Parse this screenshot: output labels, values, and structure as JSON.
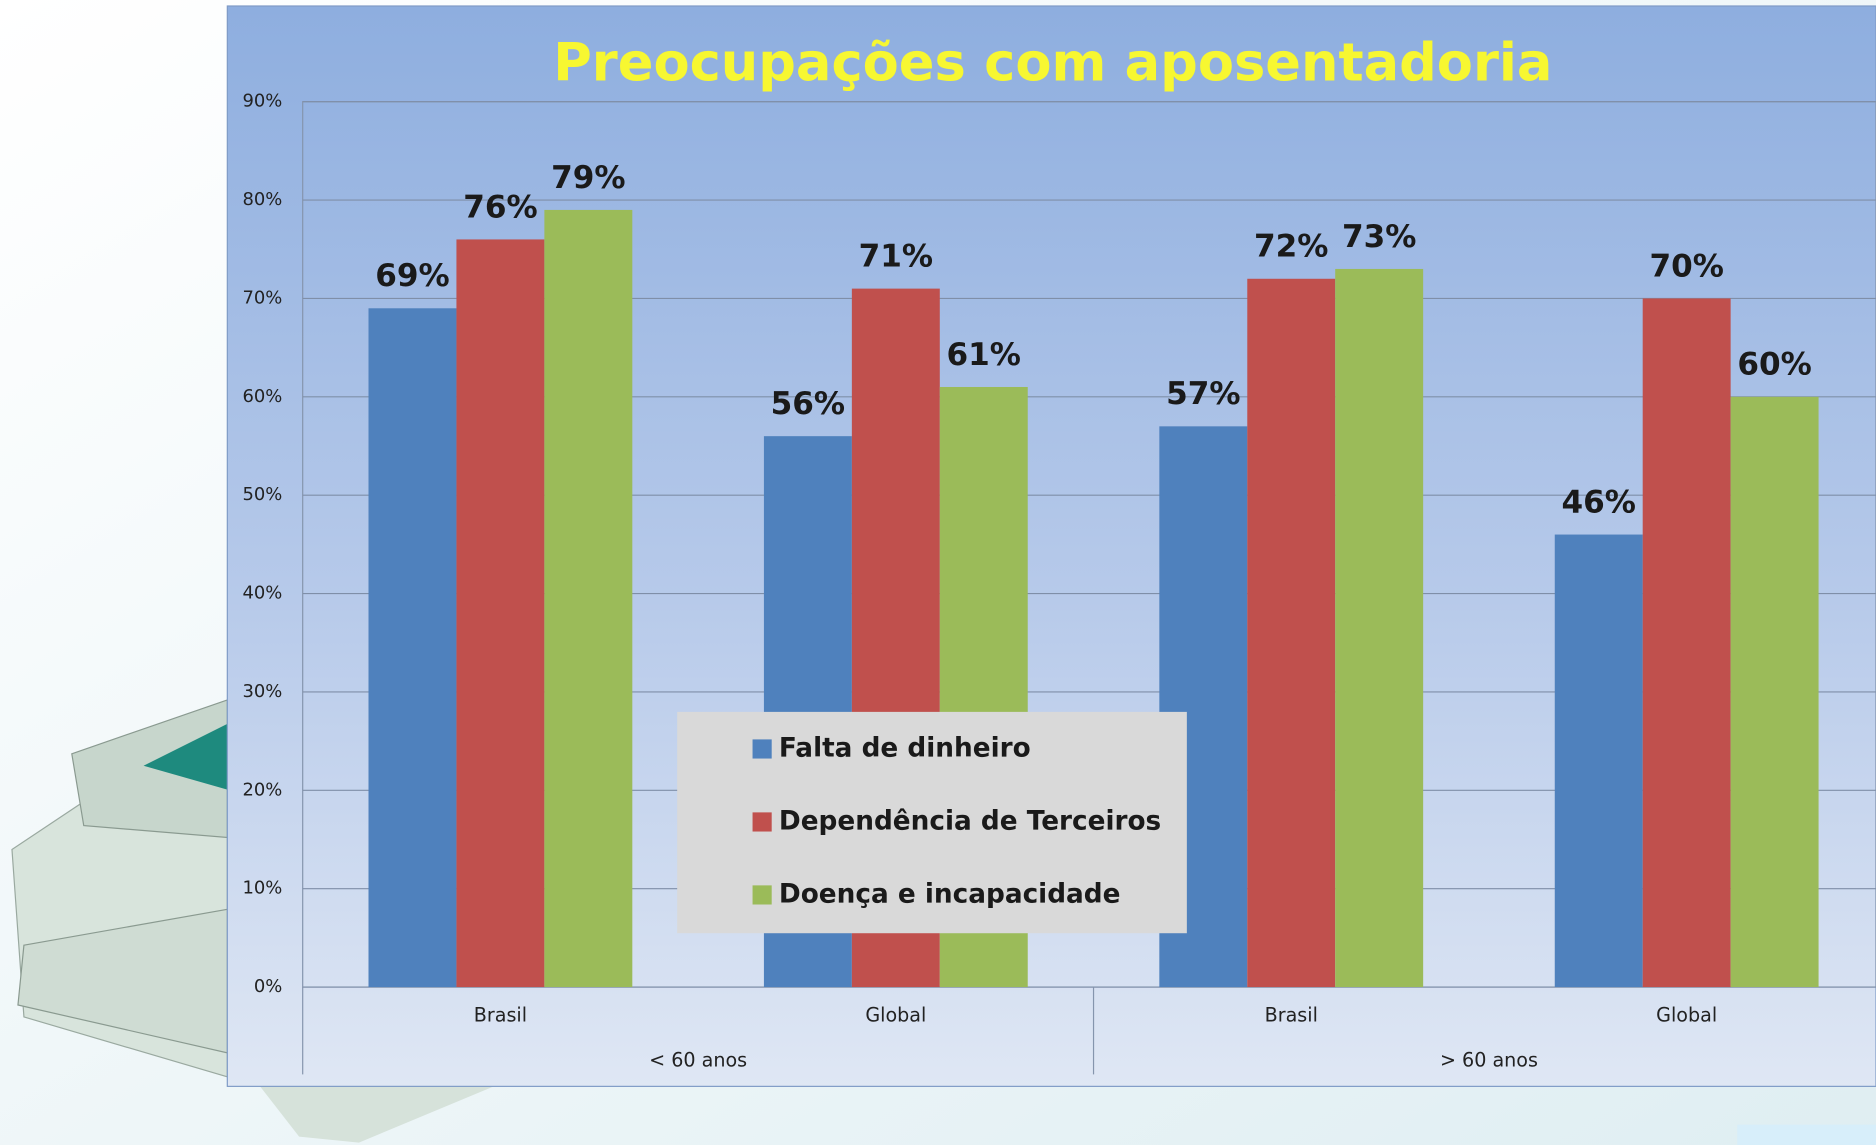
{
  "chart_data": {
    "type": "bar",
    "title": "Preocupações com aposentadoria",
    "categories": [
      "Brasil",
      "Global",
      "Brasil",
      "Global"
    ],
    "group_labels": [
      "< 60 anos",
      "> 60 anos"
    ],
    "series": [
      {
        "name": "Falta de dinheiro",
        "color": "#4f81bd",
        "values": [
          69,
          56,
          57,
          46
        ],
        "value_labels": [
          "69%",
          "56%",
          "57%",
          "46%"
        ]
      },
      {
        "name": "Dependência de Terceiros",
        "color": "#c0504d",
        "values": [
          76,
          71,
          72,
          70
        ],
        "value_labels": [
          "76%",
          "71%",
          "72%",
          "70%"
        ]
      },
      {
        "name": "Doença e incapacidade",
        "color": "#9bbb59",
        "values": [
          79,
          61,
          73,
          60
        ],
        "value_labels": [
          "79%",
          "61%",
          "73%",
          "60%"
        ]
      }
    ],
    "ylim": [
      0,
      90
    ],
    "yticks": [
      {
        "value": 0,
        "label": "0%"
      },
      {
        "value": 10,
        "label": "10%"
      },
      {
        "value": 20,
        "label": "20%"
      },
      {
        "value": 30,
        "label": "30%"
      },
      {
        "value": 40,
        "label": "40%"
      },
      {
        "value": 50,
        "label": "50%"
      },
      {
        "value": 60,
        "label": "60%"
      },
      {
        "value": 70,
        "label": "70%"
      },
      {
        "value": 80,
        "label": "80%"
      },
      {
        "value": 90,
        "label": "90%"
      }
    ],
    "grid": true
  }
}
